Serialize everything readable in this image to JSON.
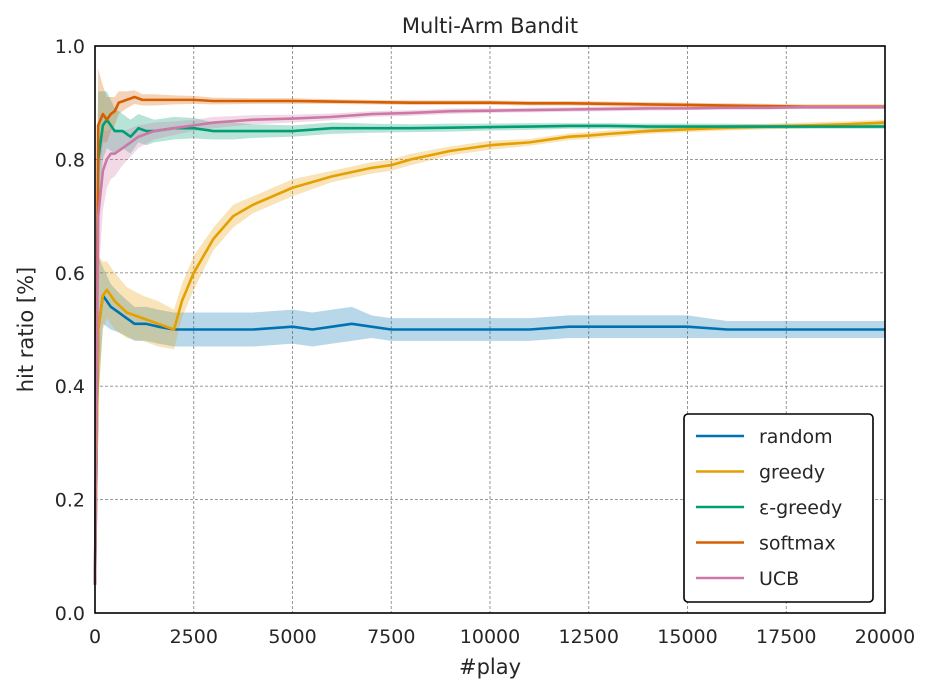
{
  "chart_data": {
    "type": "line",
    "title": "Multi-Arm Bandit",
    "xlabel": "#play",
    "ylabel": "hit ratio [%]",
    "xlim": [
      0,
      20000
    ],
    "ylim": [
      0.0,
      1.0
    ],
    "xticks": [
      0,
      2500,
      5000,
      7500,
      10000,
      12500,
      15000,
      17500,
      20000
    ],
    "yticks": [
      0.0,
      0.2,
      0.4,
      0.6,
      0.8,
      1.0
    ],
    "xtick_labels": [
      "0",
      "2500",
      "5000",
      "7500",
      "10000",
      "12500",
      "15000",
      "17500",
      "20000"
    ],
    "ytick_labels": [
      "0.0",
      "0.2",
      "0.4",
      "0.6",
      "0.8",
      "1.0"
    ],
    "grid": true,
    "legend_position": "lower-right",
    "series": [
      {
        "name": "random",
        "color": "#0072b2",
        "x": [
          0,
          80,
          200,
          300,
          400,
          600,
          800,
          1000,
          1300,
          1600,
          2000,
          2500,
          3000,
          3500,
          4000,
          5000,
          5500,
          6000,
          6500,
          7000,
          7500,
          8000,
          9000,
          10000,
          11000,
          12000,
          13000,
          14000,
          15000,
          16000,
          17000,
          18000,
          19000,
          20000
        ],
        "y": [
          0.05,
          0.5,
          0.56,
          0.55,
          0.54,
          0.53,
          0.52,
          0.51,
          0.51,
          0.505,
          0.5,
          0.5,
          0.5,
          0.5,
          0.5,
          0.505,
          0.5,
          0.505,
          0.51,
          0.505,
          0.5,
          0.5,
          0.5,
          0.5,
          0.5,
          0.505,
          0.505,
          0.505,
          0.505,
          0.5,
          0.5,
          0.5,
          0.5,
          0.5
        ],
        "band": [
          0.5,
          0.13,
          0.05,
          0.045,
          0.04,
          0.035,
          0.032,
          0.03,
          0.03,
          0.03,
          0.03,
          0.03,
          0.03,
          0.03,
          0.03,
          0.03,
          0.03,
          0.03,
          0.03,
          0.02,
          0.02,
          0.02,
          0.02,
          0.02,
          0.02,
          0.02,
          0.02,
          0.02,
          0.02,
          0.015,
          0.015,
          0.015,
          0.015,
          0.015
        ]
      },
      {
        "name": "greedy",
        "color": "#e69f00",
        "x": [
          0,
          80,
          200,
          300,
          500,
          800,
          1200,
          1600,
          2000,
          2200,
          2500,
          3000,
          3500,
          4000,
          5000,
          6000,
          7000,
          7500,
          8000,
          9000,
          10000,
          11000,
          12000,
          12500,
          13000,
          14000,
          15000,
          16000,
          17000,
          18000,
          19000,
          20000
        ],
        "y": [
          0.05,
          0.5,
          0.56,
          0.57,
          0.55,
          0.53,
          0.52,
          0.51,
          0.5,
          0.55,
          0.6,
          0.66,
          0.7,
          0.72,
          0.75,
          0.77,
          0.785,
          0.79,
          0.8,
          0.815,
          0.825,
          0.83,
          0.84,
          0.842,
          0.845,
          0.85,
          0.853,
          0.856,
          0.858,
          0.86,
          0.862,
          0.865
        ],
        "band": [
          0.5,
          0.13,
          0.06,
          0.05,
          0.05,
          0.045,
          0.04,
          0.04,
          0.035,
          0.03,
          0.03,
          0.02,
          0.02,
          0.015,
          0.015,
          0.01,
          0.01,
          0.01,
          0.01,
          0.008,
          0.008,
          0.006,
          0.006,
          0.006,
          0.006,
          0.005,
          0.005,
          0.005,
          0.005,
          0.005,
          0.005,
          0.005
        ]
      },
      {
        "name": "ε-greedy",
        "color": "#009e73",
        "x": [
          0,
          80,
          200,
          300,
          400,
          500,
          700,
          900,
          1100,
          1300,
          1500,
          2000,
          2500,
          3000,
          3500,
          4000,
          5000,
          6000,
          7000,
          8000,
          9000,
          10000,
          11000,
          12000,
          13000,
          14000,
          15000,
          16000,
          17000,
          18000,
          19000,
          20000
        ],
        "y": [
          0.05,
          0.8,
          0.86,
          0.87,
          0.86,
          0.85,
          0.85,
          0.84,
          0.855,
          0.85,
          0.85,
          0.855,
          0.855,
          0.85,
          0.85,
          0.85,
          0.85,
          0.855,
          0.855,
          0.855,
          0.856,
          0.857,
          0.858,
          0.859,
          0.859,
          0.858,
          0.858,
          0.858,
          0.858,
          0.858,
          0.858,
          0.858
        ],
        "band": [
          0.4,
          0.12,
          0.06,
          0.05,
          0.045,
          0.04,
          0.03,
          0.03,
          0.025,
          0.025,
          0.02,
          0.02,
          0.018,
          0.015,
          0.015,
          0.012,
          0.01,
          0.01,
          0.008,
          0.007,
          0.007,
          0.006,
          0.006,
          0.005,
          0.005,
          0.005,
          0.005,
          0.005,
          0.004,
          0.004,
          0.004,
          0.004
        ]
      },
      {
        "name": "softmax",
        "color": "#d55e00",
        "x": [
          0,
          80,
          200,
          300,
          400,
          500,
          600,
          800,
          1000,
          1200,
          1500,
          2000,
          2500,
          3000,
          4000,
          5000,
          6000,
          7000,
          8000,
          9000,
          10000,
          11000,
          12000,
          13000,
          14000,
          15000,
          16000,
          17000,
          18000,
          19000,
          20000
        ],
        "y": [
          0.05,
          0.86,
          0.88,
          0.87,
          0.88,
          0.885,
          0.9,
          0.905,
          0.91,
          0.905,
          0.905,
          0.905,
          0.905,
          0.903,
          0.903,
          0.903,
          0.902,
          0.901,
          0.9,
          0.9,
          0.9,
          0.899,
          0.899,
          0.898,
          0.897,
          0.896,
          0.895,
          0.894,
          0.893,
          0.893,
          0.893
        ],
        "band": [
          0.4,
          0.1,
          0.05,
          0.04,
          0.03,
          0.025,
          0.02,
          0.015,
          0.012,
          0.01,
          0.01,
          0.008,
          0.007,
          0.006,
          0.005,
          0.005,
          0.004,
          0.004,
          0.004,
          0.004,
          0.004,
          0.004,
          0.004,
          0.004,
          0.004,
          0.004,
          0.004,
          0.004,
          0.004,
          0.004,
          0.004
        ]
      },
      {
        "name": "UCB",
        "color": "#cc79a7",
        "x": [
          0,
          80,
          200,
          300,
          400,
          500,
          700,
          900,
          1100,
          1500,
          2000,
          2500,
          3000,
          4000,
          5000,
          6000,
          7000,
          8000,
          9000,
          10000,
          11000,
          12000,
          13000,
          14000,
          15000,
          16000,
          17000,
          18000,
          19000,
          20000
        ],
        "y": [
          0.05,
          0.7,
          0.78,
          0.8,
          0.81,
          0.81,
          0.82,
          0.83,
          0.84,
          0.85,
          0.855,
          0.86,
          0.865,
          0.87,
          0.872,
          0.875,
          0.88,
          0.882,
          0.885,
          0.886,
          0.887,
          0.888,
          0.889,
          0.89,
          0.89,
          0.891,
          0.891,
          0.892,
          0.892,
          0.892
        ],
        "band": [
          0.4,
          0.12,
          0.07,
          0.05,
          0.045,
          0.04,
          0.03,
          0.025,
          0.02,
          0.015,
          0.012,
          0.01,
          0.01,
          0.008,
          0.007,
          0.006,
          0.005,
          0.005,
          0.005,
          0.004,
          0.004,
          0.004,
          0.004,
          0.004,
          0.003,
          0.003,
          0.003,
          0.003,
          0.003,
          0.003
        ]
      }
    ]
  }
}
